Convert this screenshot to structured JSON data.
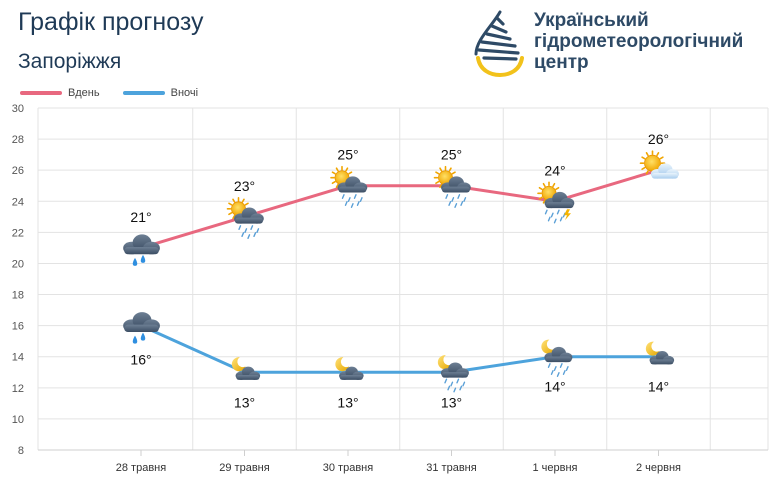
{
  "header": {
    "title": "Графік прогнозу",
    "city": "Запоріжжя"
  },
  "logo": {
    "line1": "Український",
    "line2": "гідрометеорологічний",
    "line3": "центр"
  },
  "chart_data": {
    "type": "line",
    "categories": [
      "28 травня",
      "29 травня",
      "30 травня",
      "31 травня",
      "1 червня",
      "2 червня"
    ],
    "series": [
      {
        "name": "Вдень",
        "color": "#e8687f",
        "values": [
          21,
          23,
          25,
          25,
          24,
          26
        ],
        "labels": [
          "21°",
          "23°",
          "25°",
          "25°",
          "24°",
          "26°"
        ],
        "icons": [
          "cloud-rain-icon",
          "sun-cloud-rain-icon",
          "sun-cloud-rain-icon",
          "sun-cloud-rain-icon",
          "sun-cloud-storm-icon",
          "sun-cloud-icon"
        ]
      },
      {
        "name": "Вночі",
        "color": "#4da3dc",
        "values": [
          16,
          13,
          13,
          13,
          14,
          14
        ],
        "labels": [
          "16°",
          "13°",
          "13°",
          "13°",
          "14°",
          "14°"
        ],
        "icons": [
          "cloud-rain-icon",
          "moon-cloud-icon",
          "moon-cloud-icon",
          "moon-cloud-rain-icon",
          "moon-cloud-rain-icon",
          "moon-cloud-icon"
        ]
      }
    ],
    "ylim": [
      8,
      30
    ],
    "yticks": [
      "8",
      "10",
      "12",
      "14",
      "16",
      "18",
      "20",
      "22",
      "24",
      "26",
      "28",
      "30"
    ],
    "grid": true,
    "legend": "top-left"
  }
}
